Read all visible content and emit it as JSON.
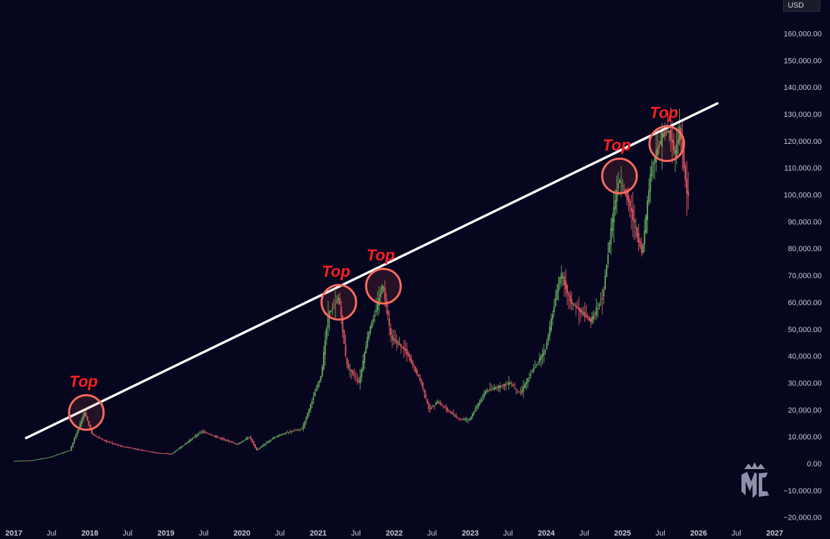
{
  "currency_badge": "USD",
  "colors": {
    "background": "#07061f",
    "up_candle": "#5fa35a",
    "down_candle": "#d9535f",
    "trendline": "#ffffff",
    "top_marker": "#ff6b5e",
    "top_label": "#ff1f1f"
  },
  "logo_icon": "mc-crown-logo-icon",
  "chart_data": {
    "type": "candlestick",
    "xlabel": "",
    "ylabel": "",
    "ylim": [
      -20000,
      165000
    ],
    "y_ticks": [
      "160,000.00",
      "150,000.00",
      "140,000.00",
      "130,000.00",
      "120,000.00",
      "110,000.00",
      "100,000.00",
      "90,000.00",
      "80,000.00",
      "70,000.00",
      "60,000.00",
      "50,000.00",
      "40,000.00",
      "30,000.00",
      "20,000.00",
      "10,000.00",
      "0.00",
      "−10,000.00",
      "−20,000.00"
    ],
    "x_ticks": [
      {
        "label": "2017",
        "date": "2017-01-01"
      },
      {
        "label": "Jul",
        "date": "2017-07-01"
      },
      {
        "label": "2018",
        "date": "2018-01-01"
      },
      {
        "label": "Jul",
        "date": "2018-07-01"
      },
      {
        "label": "2019",
        "date": "2019-01-01"
      },
      {
        "label": "Jul",
        "date": "2019-07-01"
      },
      {
        "label": "2020",
        "date": "2020-01-01"
      },
      {
        "label": "Jul",
        "date": "2020-07-01"
      },
      {
        "label": "2021",
        "date": "2021-01-01"
      },
      {
        "label": "Jul",
        "date": "2021-07-01"
      },
      {
        "label": "2022",
        "date": "2022-01-01"
      },
      {
        "label": "Jul",
        "date": "2022-07-01"
      },
      {
        "label": "2023",
        "date": "2023-01-01"
      },
      {
        "label": "Jul",
        "date": "2023-07-01"
      },
      {
        "label": "2024",
        "date": "2024-01-01"
      },
      {
        "label": "Jul",
        "date": "2024-07-01"
      },
      {
        "label": "2025",
        "date": "2025-01-01"
      },
      {
        "label": "Jul",
        "date": "2025-07-01"
      },
      {
        "label": "2026",
        "date": "2026-01-01"
      },
      {
        "label": "Jul",
        "date": "2026-07-01"
      },
      {
        "label": "2027",
        "date": "2027-01-01"
      }
    ],
    "price_path": [
      [
        "2017-01-01",
        1000
      ],
      [
        "2017-04-01",
        1200
      ],
      [
        "2017-07-01",
        2500
      ],
      [
        "2017-10-01",
        5000
      ],
      [
        "2017-12-10",
        19000
      ],
      [
        "2018-01-15",
        11000
      ],
      [
        "2018-03-01",
        9000
      ],
      [
        "2018-06-01",
        6500
      ],
      [
        "2018-11-20",
        4000
      ],
      [
        "2019-02-01",
        3600
      ],
      [
        "2019-06-25",
        12000
      ],
      [
        "2019-09-01",
        10000
      ],
      [
        "2019-12-15",
        7200
      ],
      [
        "2020-02-10",
        10000
      ],
      [
        "2020-03-15",
        5000
      ],
      [
        "2020-06-01",
        9500
      ],
      [
        "2020-08-01",
        11500
      ],
      [
        "2020-10-20",
        13000
      ],
      [
        "2020-12-31",
        29000
      ],
      [
        "2021-01-20",
        33000
      ],
      [
        "2021-02-20",
        55000
      ],
      [
        "2021-04-14",
        62000
      ],
      [
        "2021-05-20",
        37000
      ],
      [
        "2021-07-20",
        30000
      ],
      [
        "2021-09-01",
        48000
      ],
      [
        "2021-10-20",
        60000
      ],
      [
        "2021-11-10",
        67000
      ],
      [
        "2021-12-20",
        47000
      ],
      [
        "2022-03-01",
        42000
      ],
      [
        "2022-05-15",
        30000
      ],
      [
        "2022-06-20",
        20000
      ],
      [
        "2022-08-01",
        23000
      ],
      [
        "2022-11-10",
        16500
      ],
      [
        "2023-01-01",
        16500
      ],
      [
        "2023-03-20",
        27000
      ],
      [
        "2023-07-15",
        30000
      ],
      [
        "2023-09-01",
        26000
      ],
      [
        "2023-10-25",
        34000
      ],
      [
        "2023-12-31",
        42500
      ],
      [
        "2024-03-14",
        71000
      ],
      [
        "2024-05-01",
        60000
      ],
      [
        "2024-08-05",
        53000
      ],
      [
        "2024-10-01",
        62000
      ],
      [
        "2024-11-15",
        90000
      ],
      [
        "2024-12-17",
        106000
      ],
      [
        "2025-02-01",
        98000
      ],
      [
        "2025-04-08",
        78000
      ],
      [
        "2025-05-22",
        110000
      ],
      [
        "2025-07-14",
        122000
      ],
      [
        "2025-08-14",
        124000
      ],
      [
        "2025-09-15",
        115000
      ],
      [
        "2025-10-06",
        125000
      ],
      [
        "2025-11-10",
        100000
      ]
    ],
    "trendline": {
      "start": [
        "2017-03-01",
        9500
      ],
      "end": [
        "2026-04-01",
        134000
      ]
    },
    "annotations": [
      {
        "text": "Top",
        "date": "2017-12-15",
        "value": 19000
      },
      {
        "text": "Top",
        "date": "2021-04-10",
        "value": 60000
      },
      {
        "text": "Top",
        "date": "2021-11-10",
        "value": 66000
      },
      {
        "text": "Top",
        "date": "2024-12-17",
        "value": 107000
      },
      {
        "text": "Top",
        "date": "2025-08-01",
        "value": 119000
      }
    ]
  }
}
